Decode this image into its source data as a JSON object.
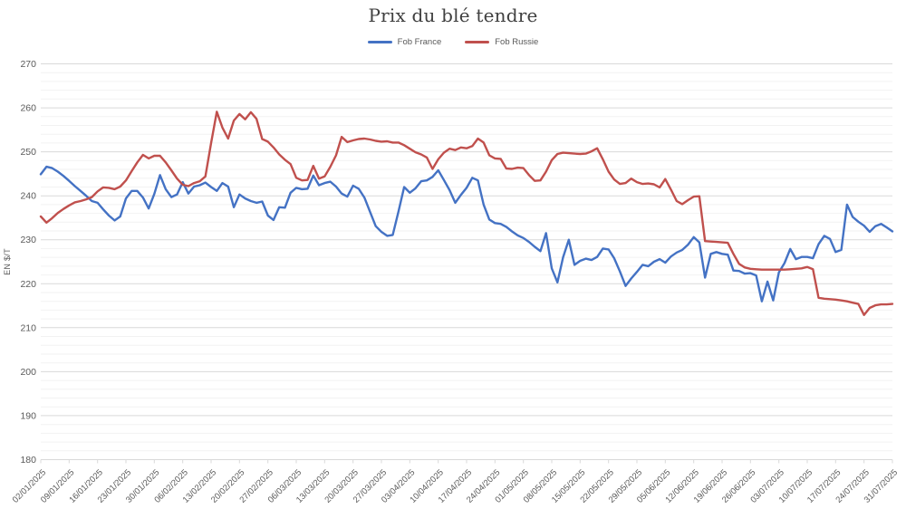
{
  "page": {
    "background": "#ffffff"
  },
  "chart_data": {
    "type": "line",
    "title": "Prix du blé tendre",
    "ylabel": "EN $/T",
    "ylim": [
      180,
      270
    ],
    "y_tick_step_major": 10,
    "y_tick_step_minor": 2,
    "grid": "horizontal",
    "legend_position": "top",
    "axis_color": "#d9d9d9",
    "minor_grid_color": "#f2f2f2",
    "major_grid_color": "#d9d9d9",
    "label_color": "#595959",
    "x_tick_labels": [
      "02/01/2025",
      "09/01/2025",
      "16/01/2025",
      "23/01/2025",
      "30/01/2025",
      "06/02/2025",
      "13/02/2025",
      "20/02/2025",
      "27/02/2025",
      "06/03/2025",
      "13/03/2025",
      "20/03/2025",
      "27/03/2025",
      "03/04/2025",
      "10/04/2025",
      "17/04/2025",
      "24/04/2025",
      "01/05/2025",
      "08/05/2025",
      "15/05/2025",
      "22/05/2025",
      "29/05/2025",
      "05/06/2025",
      "12/06/2025",
      "19/06/2025",
      "26/06/2025",
      "03/07/2025",
      "10/07/2025",
      "17/07/2025",
      "24/07/2025",
      "31/07/2025"
    ],
    "points_per_label_interval": 5,
    "series": [
      {
        "name": "Fob France",
        "color": "#4472C4",
        "values": [
          244.9,
          246.6,
          246.3,
          245.5,
          244.5,
          243.4,
          242.2,
          241.1,
          240,
          238.8,
          238.4,
          236.9,
          235.5,
          234.4,
          235.3,
          239.4,
          241.1,
          241.1,
          239.6,
          237.1,
          240.4,
          244.7,
          241.5,
          239.7,
          240.3,
          243.1,
          240.5,
          242.1,
          242.4,
          243,
          242,
          241.1,
          242.9,
          242.1,
          237.4,
          240.3,
          239.4,
          238.8,
          238.4,
          238.7,
          235.5,
          234.5,
          237.4,
          237.3,
          240.7,
          241.8,
          241.5,
          241.6,
          244.6,
          242.4,
          242.9,
          243.2,
          242.1,
          240.5,
          239.8,
          242.3,
          241.6,
          239.6,
          236.3,
          233.1,
          231.8,
          230.9,
          231.1,
          236.4,
          242,
          240.7,
          241.7,
          243.3,
          243.5,
          244.3,
          245.8,
          243.6,
          241.3,
          238.4,
          240.2,
          241.8,
          244.1,
          243.5,
          238,
          234.6,
          233.8,
          233.6,
          232.9,
          231.9,
          231,
          230.4,
          229.5,
          228.4,
          227.4,
          231.5,
          223.5,
          220.3,
          226,
          230,
          224.3,
          225.2,
          225.7,
          225.4,
          226.1,
          228,
          227.8,
          225.8,
          222.8,
          219.5,
          221.2,
          222.7,
          224.3,
          224,
          225,
          225.6,
          224.8,
          226.2,
          227.1,
          227.7,
          228.9,
          230.6,
          229.4,
          221.4,
          226.8,
          227.2,
          226.8,
          226.6,
          223,
          222.9,
          222.3,
          222.4,
          221.9,
          216,
          220.5,
          216.2,
          222.6,
          224.7,
          227.9,
          225.6,
          226.1,
          226.1,
          225.8,
          229,
          230.9,
          230.2,
          227.2,
          227.7,
          238,
          235.2,
          234.1,
          233.2,
          231.8,
          233.1,
          233.6,
          232.8,
          231.9
        ]
      },
      {
        "name": "Fob Russie",
        "color": "#C0504D",
        "values": [
          235.3,
          233.9,
          234.9,
          236.1,
          237,
          237.8,
          238.5,
          238.8,
          239.2,
          239.7,
          241,
          241.9,
          241.8,
          241.5,
          242.1,
          243.5,
          245.6,
          247.6,
          249.3,
          248.5,
          249.1,
          249.1,
          247.6,
          245.8,
          243.9,
          242.5,
          242.2,
          242.9,
          243.3,
          244.4,
          252,
          259.1,
          255.5,
          253,
          257.1,
          258.6,
          257.4,
          259,
          257.5,
          252.9,
          252.3,
          251,
          249.4,
          248.2,
          247.2,
          244.1,
          243.5,
          243.6,
          246.8,
          243.9,
          244.4,
          246.6,
          249.2,
          253.4,
          252.2,
          252.6,
          252.9,
          253,
          252.8,
          252.5,
          252.3,
          252.4,
          252.1,
          252.1,
          251.5,
          250.7,
          249.9,
          249.4,
          248.7,
          246.1,
          248.3,
          249.8,
          250.7,
          250.4,
          251,
          250.8,
          251.3,
          253,
          252.1,
          249.2,
          248.5,
          248.4,
          246.2,
          246.1,
          246.4,
          246.3,
          244.7,
          243.4,
          243.5,
          245.5,
          248.1,
          249.5,
          249.8,
          249.7,
          249.6,
          249.5,
          249.6,
          250.1,
          250.8,
          248.3,
          245.5,
          243.7,
          242.7,
          242.9,
          243.9,
          243.1,
          242.7,
          242.8,
          242.6,
          241.9,
          243.8,
          241.4,
          238.8,
          238.1,
          239,
          239.8,
          239.9,
          229.7,
          229.6,
          229.5,
          229.4,
          229.3,
          226.8,
          224.5,
          223.7,
          223.4,
          223.3,
          223.2,
          223.2,
          223.2,
          223.2,
          223.2,
          223.3,
          223.4,
          223.5,
          223.8,
          223.3,
          216.8,
          216.6,
          216.5,
          216.4,
          216.2,
          216,
          215.7,
          215.4,
          212.9,
          214.5,
          215.1,
          215.3,
          215.3,
          215.4
        ]
      }
    ]
  }
}
